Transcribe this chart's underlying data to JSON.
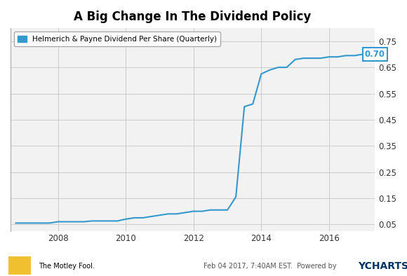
{
  "title": "A Big Change In The Dividend Policy",
  "legend_label": "Helmerich & Payne Dividend Per Share (Quarterly)",
  "line_color": "#3399cc",
  "background_color": "#f2f2f2",
  "annotation_value": "0.70",
  "annotation_color": "#3399cc",
  "yticks": [
    0.05,
    0.15,
    0.25,
    0.35,
    0.45,
    0.55,
    0.65,
    0.75
  ],
  "xticks": [
    2008,
    2010,
    2012,
    2014,
    2016
  ],
  "ylim": [
    0.025,
    0.8
  ],
  "xlim": [
    2006.6,
    2017.35
  ],
  "x": [
    2006.75,
    2007.0,
    2007.25,
    2007.5,
    2007.75,
    2008.0,
    2008.25,
    2008.5,
    2008.75,
    2009.0,
    2009.25,
    2009.5,
    2009.75,
    2010.0,
    2010.25,
    2010.5,
    2010.75,
    2011.0,
    2011.25,
    2011.5,
    2011.75,
    2012.0,
    2012.25,
    2012.5,
    2012.75,
    2013.0,
    2013.25,
    2013.5,
    2013.75,
    2014.0,
    2014.25,
    2014.5,
    2014.75,
    2015.0,
    2015.25,
    2015.5,
    2015.75,
    2016.0,
    2016.25,
    2016.5,
    2016.75,
    2017.0,
    2017.1
  ],
  "y": [
    0.055,
    0.055,
    0.055,
    0.055,
    0.055,
    0.06,
    0.06,
    0.06,
    0.06,
    0.063,
    0.063,
    0.063,
    0.063,
    0.07,
    0.075,
    0.075,
    0.08,
    0.085,
    0.09,
    0.09,
    0.095,
    0.1,
    0.1,
    0.105,
    0.105,
    0.105,
    0.155,
    0.5,
    0.51,
    0.625,
    0.64,
    0.65,
    0.65,
    0.68,
    0.685,
    0.685,
    0.685,
    0.69,
    0.69,
    0.695,
    0.695,
    0.7,
    0.7
  ],
  "footer_date": "Feb 04 2017, 7:40AM EST.  Powered by ",
  "footer_ycharts": "YCHARTS",
  "footer_motley": "The Motley Fool."
}
